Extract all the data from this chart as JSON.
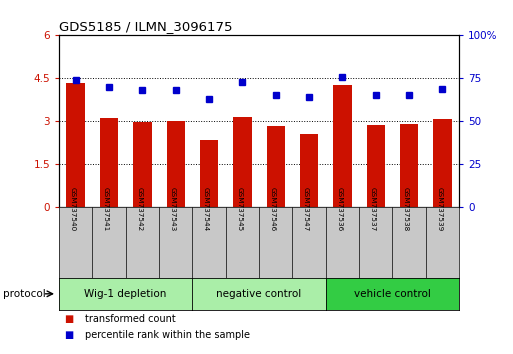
{
  "title": "GDS5185 / ILMN_3096175",
  "samples": [
    "GSM737540",
    "GSM737541",
    "GSM737542",
    "GSM737543",
    "GSM737544",
    "GSM737545",
    "GSM737546",
    "GSM737547",
    "GSM737536",
    "GSM737537",
    "GSM737538",
    "GSM737539"
  ],
  "transformed_count": [
    4.35,
    3.1,
    2.97,
    3.02,
    2.35,
    3.15,
    2.82,
    2.55,
    4.25,
    2.87,
    2.9,
    3.07
  ],
  "percentile_rank": [
    74,
    70,
    68,
    68,
    63,
    73,
    65,
    64,
    76,
    65,
    65,
    69
  ],
  "bar_color": "#cc1100",
  "dot_color": "#0000cc",
  "left_ylim": [
    0,
    6
  ],
  "right_ylim": [
    0,
    100
  ],
  "left_yticks": [
    0,
    1.5,
    3.0,
    4.5,
    6.0
  ],
  "left_yticklabels": [
    "0",
    "1.5",
    "3",
    "4.5",
    "6"
  ],
  "right_yticks": [
    0,
    25,
    50,
    75,
    100
  ],
  "right_yticklabels": [
    "0",
    "25",
    "50",
    "75",
    "100%"
  ],
  "groups": [
    {
      "label": "Wig-1 depletion",
      "start": 0,
      "end": 3,
      "color": "#aaeea8"
    },
    {
      "label": "negative control",
      "start": 4,
      "end": 7,
      "color": "#aaeea8"
    },
    {
      "label": "vehicle control",
      "start": 8,
      "end": 11,
      "color": "#33cc44"
    }
  ],
  "protocol_label": "protocol",
  "legend_bar_label": "transformed count",
  "legend_dot_label": "percentile rank within the sample",
  "background_color": "#ffffff",
  "plot_bg_color": "#ffffff",
  "tick_label_color_left": "#cc1100",
  "tick_label_color_right": "#0000cc",
  "grid_color": "#000000",
  "xlabel_area_color": "#c8c8c8"
}
